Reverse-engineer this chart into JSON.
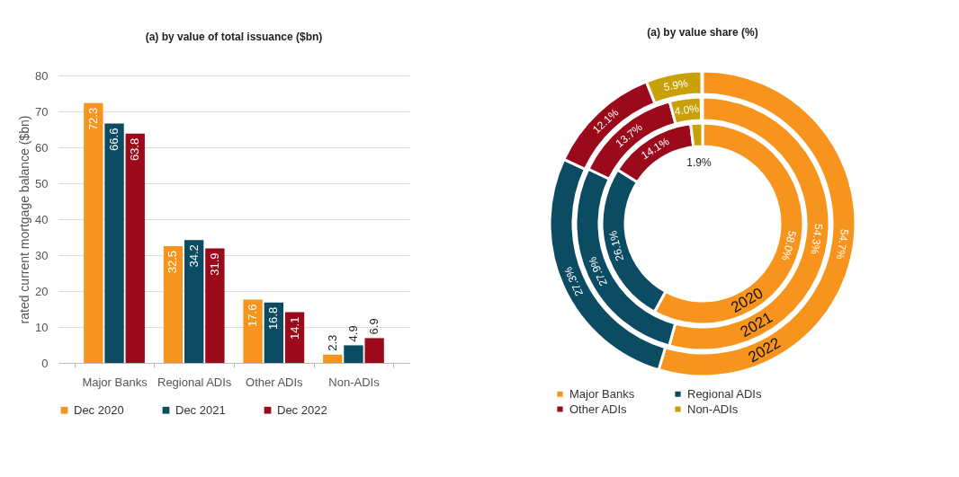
{
  "chart_data": [
    {
      "type": "bar",
      "title": "(a) by value of total issuance ($bn)",
      "ylabel": "rated current mortgage balance ($bn)",
      "categories": [
        "Major Banks",
        "Regional ADIs",
        "Other ADIs",
        "Non-ADIs"
      ],
      "series": [
        {
          "name": "Dec 2020",
          "color": "#f7941d",
          "values": [
            72.3,
            32.5,
            17.6,
            2.3
          ]
        },
        {
          "name": "Dec 2021",
          "color": "#0c4c62",
          "values": [
            66.6,
            34.2,
            16.8,
            4.9
          ]
        },
        {
          "name": "Dec 2022",
          "color": "#9a0a1a",
          "values": [
            63.8,
            31.9,
            14.1,
            6.9
          ]
        }
      ],
      "ylim": [
        0,
        80
      ],
      "yticks": [
        0,
        10,
        20,
        30,
        40,
        50,
        60,
        70,
        80
      ],
      "grid": "y",
      "legend": "bottom",
      "data_labels": true
    },
    {
      "type": "donut",
      "title": "(a) by value share (%)",
      "categories": [
        "Major Banks",
        "Regional ADIs",
        "Other ADIs",
        "Non-ADIs"
      ],
      "colors": [
        "#f7941d",
        "#0c4c62",
        "#9a0a1a",
        "#c9a008"
      ],
      "series": [
        {
          "name": "2020",
          "values": [
            58.0,
            26.1,
            14.1,
            1.9
          ],
          "value_labels": [
            "58.0%",
            "26.1%",
            "14.1%",
            "1.9%"
          ]
        },
        {
          "name": "2021",
          "values": [
            54.3,
            27.9,
            13.7,
            4.0
          ],
          "value_labels": [
            "54.3%",
            "27.9%",
            "13.7%",
            "4.0%"
          ]
        },
        {
          "name": "2022",
          "values": [
            54.7,
            27.3,
            12.1,
            5.9
          ],
          "value_labels": [
            "54.7%",
            "27.3%",
            "12.1%",
            "5.9%"
          ]
        }
      ],
      "legend": "bottom"
    }
  ]
}
